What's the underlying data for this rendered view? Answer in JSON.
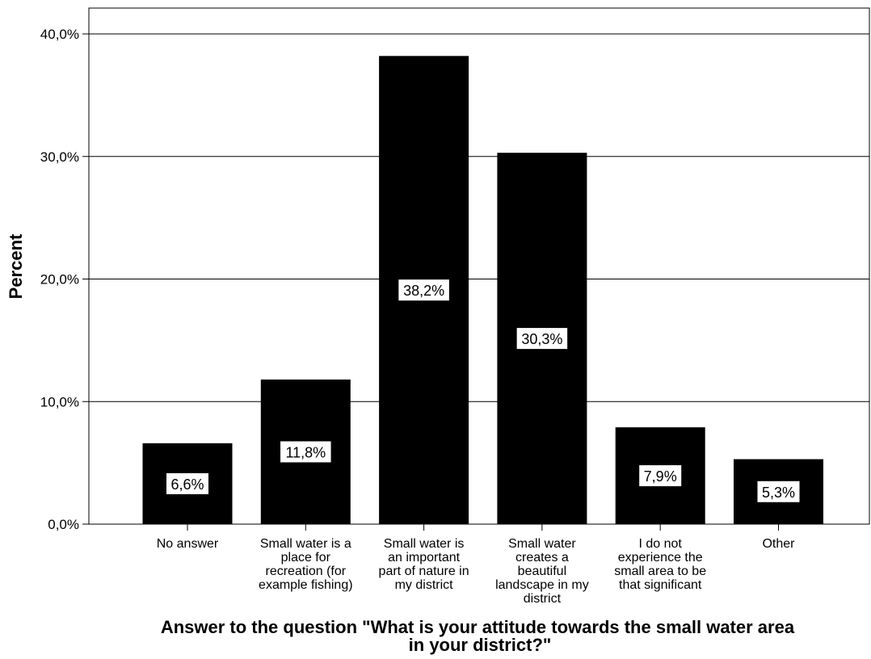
{
  "chart_data": {
    "type": "bar",
    "categories": [
      [
        "No answer"
      ],
      [
        "Small water is a",
        "place for",
        "recreation (for",
        "example fishing)"
      ],
      [
        "Small water is",
        "an important",
        "part of nature in",
        "my district"
      ],
      [
        "Small water",
        "creates a",
        "beautiful",
        "landscape in my",
        "district"
      ],
      [
        "I do not",
        "experience the",
        "small area to be",
        "that significant"
      ],
      [
        "Other"
      ]
    ],
    "values": [
      6.6,
      11.8,
      38.2,
      30.3,
      7.9,
      5.3
    ],
    "data_labels": [
      "6,6%",
      "11,8%",
      "38,2%",
      "30,3%",
      "7,9%",
      "5,3%"
    ],
    "ylim": [
      0,
      42
    ],
    "yticks": [
      0,
      10,
      20,
      30,
      40
    ],
    "ytick_labels": [
      "0,0%",
      "10,0%",
      "20,0%",
      "30,0%",
      "40,0%"
    ],
    "ylabel": "Percent",
    "xlabel": [
      "Answer to the question \"What is your attitude towards the small water area",
      "in your district?\""
    ],
    "grid": "horizontal",
    "bar_color": "#000000",
    "label_box_color": "#ffffff"
  }
}
